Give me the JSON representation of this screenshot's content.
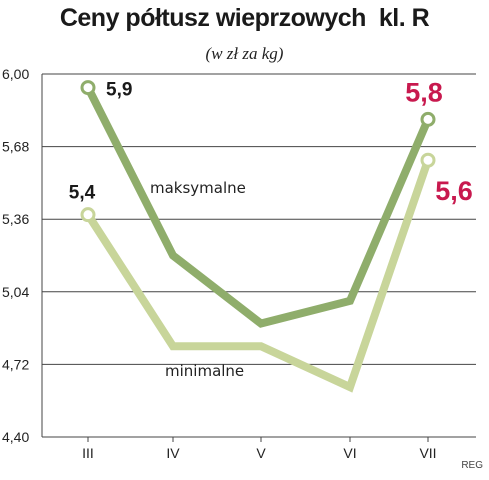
{
  "chart_data": {
    "type": "line",
    "title": "Ceny półtusz wieprzowych  kl. R",
    "subtitle": "(w zł za kg)",
    "categories": [
      "III",
      "IV",
      "V",
      "VI",
      "VII"
    ],
    "ylim": [
      4.4,
      6.0
    ],
    "yticks": [
      "6,00",
      "5,68",
      "5,36",
      "5,04",
      "4,72",
      "4,40"
    ],
    "ytick_values": [
      6.0,
      5.68,
      5.36,
      5.04,
      4.72,
      4.4
    ],
    "grid": true,
    "series": [
      {
        "name": "maksymalne",
        "values": [
          5.94,
          5.2,
          4.9,
          5.0,
          5.8
        ],
        "color": "#8fad6b"
      },
      {
        "name": "minimalne",
        "values": [
          5.38,
          4.8,
          4.8,
          4.62,
          5.62
        ],
        "color": "#c8d59a"
      }
    ],
    "data_labels": [
      {
        "text": "5,9",
        "series": 0,
        "index": 0,
        "color": "#1a1a1a"
      },
      {
        "text": "5,4",
        "series": 1,
        "index": 0,
        "color": "#1a1a1a"
      },
      {
        "text": "5,8",
        "series": 0,
        "index": 4,
        "color": "#c8194e"
      },
      {
        "text": "5,6",
        "series": 1,
        "index": 4,
        "color": "#c8194e"
      }
    ],
    "source": "REG"
  }
}
